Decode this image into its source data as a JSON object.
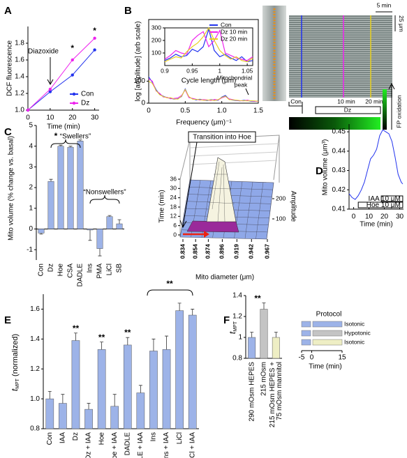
{
  "chart_data": [
    {
      "type": "line",
      "panel": "A",
      "xlabel": "Time (min)",
      "ylabel": "DCF fluorescence",
      "xlim": [
        0,
        32
      ],
      "xticks": [
        0,
        10,
        20,
        30
      ],
      "ylim": [
        1.0,
        2.0
      ],
      "yticks": [
        {
          "value": 1,
          "label": "1.0"
        },
        1.2,
        1.4,
        1.6,
        1.8
      ],
      "x": [
        0,
        10,
        20,
        30
      ],
      "series": [
        {
          "name": "Con",
          "color": "#2233ee",
          "values": [
            1.0,
            1.22,
            1.42,
            1.72
          ]
        },
        {
          "name": "Dz",
          "color": "#ee22ee",
          "values": [
            1.0,
            1.25,
            1.6,
            1.86
          ]
        }
      ],
      "legend": "lower right",
      "annotations": [
        "Diazoxide",
        "*",
        "*"
      ]
    },
    {
      "type": "line",
      "panel": "B",
      "xlabel": "Frequency (μm)⁻¹",
      "ylabel": "log [amplitude] (arb scale)",
      "xlim": [
        0,
        1.5
      ],
      "xticks": [
        0,
        0.5,
        {
          "value": 1,
          "label": "1.0"
        },
        1.5
      ],
      "ylim": [
        0,
        380
      ],
      "yticks": [
        0,
        100
      ],
      "x": [
        0,
        0.05,
        0.1,
        0.15,
        0.2,
        0.25,
        0.3,
        0.35,
        0.4,
        0.45,
        0.5,
        0.55,
        0.6,
        0.65,
        0.7,
        0.75,
        0.8,
        0.85,
        0.9,
        0.95,
        1,
        1.05,
        1.1,
        1.15,
        1.2,
        1.25,
        1.3,
        1.35,
        1.4,
        1.45,
        1.5
      ],
      "series": [
        {
          "color": "#2233ee",
          "values": [
            120,
            95,
            62,
            40,
            32,
            25,
            22,
            18,
            20,
            30,
            65,
            28,
            20,
            15,
            18,
            14,
            12,
            16,
            14,
            13,
            28,
            35,
            18,
            14,
            12,
            10,
            13,
            12,
            9,
            8,
            10
          ]
        },
        {
          "color": "#ee22ee",
          "values": [
            110,
            100,
            55,
            45,
            28,
            27,
            20,
            22,
            24,
            35,
            60,
            25,
            22,
            18,
            14,
            16,
            15,
            12,
            17,
            15,
            24,
            30,
            20,
            16,
            13,
            11,
            10,
            14,
            10,
            9,
            8
          ]
        },
        {
          "color": "#e8d020",
          "values": [
            100,
            90,
            58,
            38,
            30,
            24,
            25,
            19,
            18,
            32,
            62,
            30,
            18,
            17,
            16,
            13,
            14,
            15,
            12,
            16,
            26,
            32,
            16,
            15,
            14,
            12,
            11,
            10,
            11,
            10,
            9
          ]
        }
      ],
      "annotations": [
        "Mitochondrial",
        "peak"
      ],
      "image_labels": [
        "5 min",
        "25 μm",
        "Con",
        "10 min",
        "20 min",
        "Dz",
        "FP oxidation"
      ]
    },
    {
      "type": "line",
      "xlabel": "Cycle length (μm)",
      "xlim": [
        0.9,
        1.06
      ],
      "xticks": [
        0.9,
        0.95,
        1,
        1.05
      ],
      "ylim": [
        0,
        300
      ],
      "yticks": [
        100,
        200,
        300
      ],
      "x": [
        0.9,
        0.91,
        0.92,
        0.93,
        0.94,
        0.95,
        0.96,
        0.97,
        0.98,
        0.99,
        1,
        1.01,
        1.02,
        1.03,
        1.04,
        1.05,
        1.06
      ],
      "series": [
        {
          "name": "Con",
          "color": "#2233ee",
          "values": [
            40,
            60,
            90,
            70,
            80,
            130,
            110,
            150,
            290,
            120,
            70,
            90,
            60,
            40,
            70,
            30,
            40
          ]
        },
        {
          "name": "Dz 10 min",
          "color": "#ee22ee",
          "values": [
            50,
            80,
            120,
            100,
            90,
            200,
            240,
            270,
            150,
            200,
            280,
            100,
            80,
            60,
            50,
            40,
            70
          ]
        },
        {
          "name": "Dz 20 min",
          "color": "#e8d020",
          "values": [
            30,
            50,
            70,
            60,
            110,
            150,
            180,
            230,
            300,
            200,
            120,
            80,
            50,
            70,
            40,
            30,
            60
          ]
        }
      ],
      "legend": "upper right"
    },
    {
      "type": "bar",
      "panel": "C",
      "ylabel": "Mito volume (% change vs. basal)",
      "categories": [
        "Con",
        "Dz",
        "Hoe",
        "CSA",
        "DADLE",
        "Ins",
        "PMA",
        "LiCl",
        "SB"
      ],
      "values": [
        -0.2,
        2.3,
        4.0,
        3.95,
        4.25,
        -0.05,
        -0.95,
        0.6,
        0.25
      ],
      "errors": [
        0.05,
        0.1,
        0.05,
        0.05,
        0.05,
        0.5,
        0.35,
        0.05,
        0.2
      ],
      "color": "#9db3e8",
      "ylim": [
        -1.5,
        5
      ],
      "yticks": [
        -1,
        0,
        1,
        2,
        3,
        4,
        5
      ],
      "annotations": [
        "*",
        "“Swellers”",
        "“Nonswellers”"
      ]
    },
    {
      "type": "surface3d",
      "xlabel": "Mito diameter (μm)",
      "ylabel": "Time (min)",
      "zlabel": "Amplitude",
      "xlim": [
        0.834,
        0.967
      ],
      "xticks": [
        0.834,
        0.854,
        0.874,
        0.896,
        0.919,
        0.942,
        0.967
      ],
      "ylim": [
        0,
        36
      ],
      "yticks": [
        0,
        6,
        12,
        18,
        24,
        30,
        36
      ],
      "zlim": [
        0,
        250
      ],
      "zticks": [
        100,
        200
      ],
      "annotations": [
        "Transition into Hoe"
      ]
    },
    {
      "type": "line",
      "panel": "D",
      "xlabel": "Time (min)",
      "ylabel": "Mito volume (μm³)",
      "xlim": [
        -3,
        32.5
      ],
      "xticks": [
        0,
        10,
        20,
        30
      ],
      "ylim": [
        0.41,
        0.454
      ],
      "yticks": [
        0.41,
        0.42,
        0.43,
        0.44,
        0.45
      ],
      "x": [
        -3,
        -1,
        1,
        3,
        5,
        7,
        9,
        11,
        13,
        15,
        17,
        19,
        21,
        23,
        25,
        27,
        29,
        31,
        32
      ],
      "series": [
        {
          "color": "#2233ee",
          "values": [
            0.418,
            0.416,
            0.415,
            0.417,
            0.42,
            0.424,
            0.43,
            0.436,
            0.438,
            0.441,
            0.448,
            0.451,
            0.45,
            0.449,
            0.445,
            0.437,
            0.428,
            0.424,
            0.423
          ]
        }
      ],
      "treatments": [
        {
          "label": "IAA 10 μM",
          "start": 18,
          "end": 32
        },
        {
          "label": "Hoe 10 μM",
          "start": 3,
          "end": 32
        }
      ]
    },
    {
      "type": "bar",
      "panel": "E",
      "ylabel": "t",
      "ylabel_sub": "MPT",
      "ylabel_rest": " (normalized)",
      "categories": [
        "Con",
        "IAA",
        "Dz",
        "Dz + IAA",
        "Hoe",
        "Hoe + IAA",
        "DADLE",
        "DADLE + IAA",
        "Ins",
        "Ins + IAA",
        "LiCl",
        "LiCl + IAA"
      ],
      "values": [
        1.0,
        0.97,
        1.39,
        0.93,
        1.33,
        0.95,
        1.36,
        1.04,
        1.32,
        1.33,
        1.59,
        1.56
      ],
      "errors": [
        0.05,
        0.06,
        0.05,
        0.04,
        0.05,
        0.08,
        0.05,
        0.05,
        0.08,
        0.09,
        0.05,
        0.04
      ],
      "color": "#9db3e8",
      "ylim": [
        0.8,
        1.7
      ],
      "yticks": [
        0.8,
        {
          "value": 1,
          "label": "1.0"
        },
        1.2,
        1.4,
        1.6
      ],
      "annotations": [
        "**",
        "**",
        "**",
        "**"
      ]
    },
    {
      "type": "bar",
      "panel": "F",
      "ylabel": "t",
      "ylabel_sub": "MPT",
      "categories": [
        "290 mOsm HEPES",
        "215 mOsm",
        [
          "215 mOsm HEPES +",
          "75 mOsm mannitol"
        ]
      ],
      "values": [
        1.0,
        1.27,
        1.0
      ],
      "errors": [
        0.05,
        0.06,
        0.05
      ],
      "colors": [
        "#9db3e8",
        "#c4c4c4",
        "#eeeec4"
      ],
      "ylim": [
        0.8,
        1.4
      ],
      "yticks": [
        0.8,
        1,
        1.2,
        1.4
      ],
      "annotations": [
        "**"
      ],
      "protocol": {
        "title": "Protocol",
        "xlabel": "Time (min)",
        "xlim": [
          -5,
          15
        ],
        "xticks": [
          -5,
          0,
          15
        ],
        "rows": [
          {
            "label": "Isotonic",
            "color": "#9db3e8"
          },
          {
            "label": "Hypotonic",
            "color": "#c4c4c4"
          },
          {
            "label": "Isotonic",
            "color": "#eeeec4"
          }
        ]
      }
    }
  ]
}
